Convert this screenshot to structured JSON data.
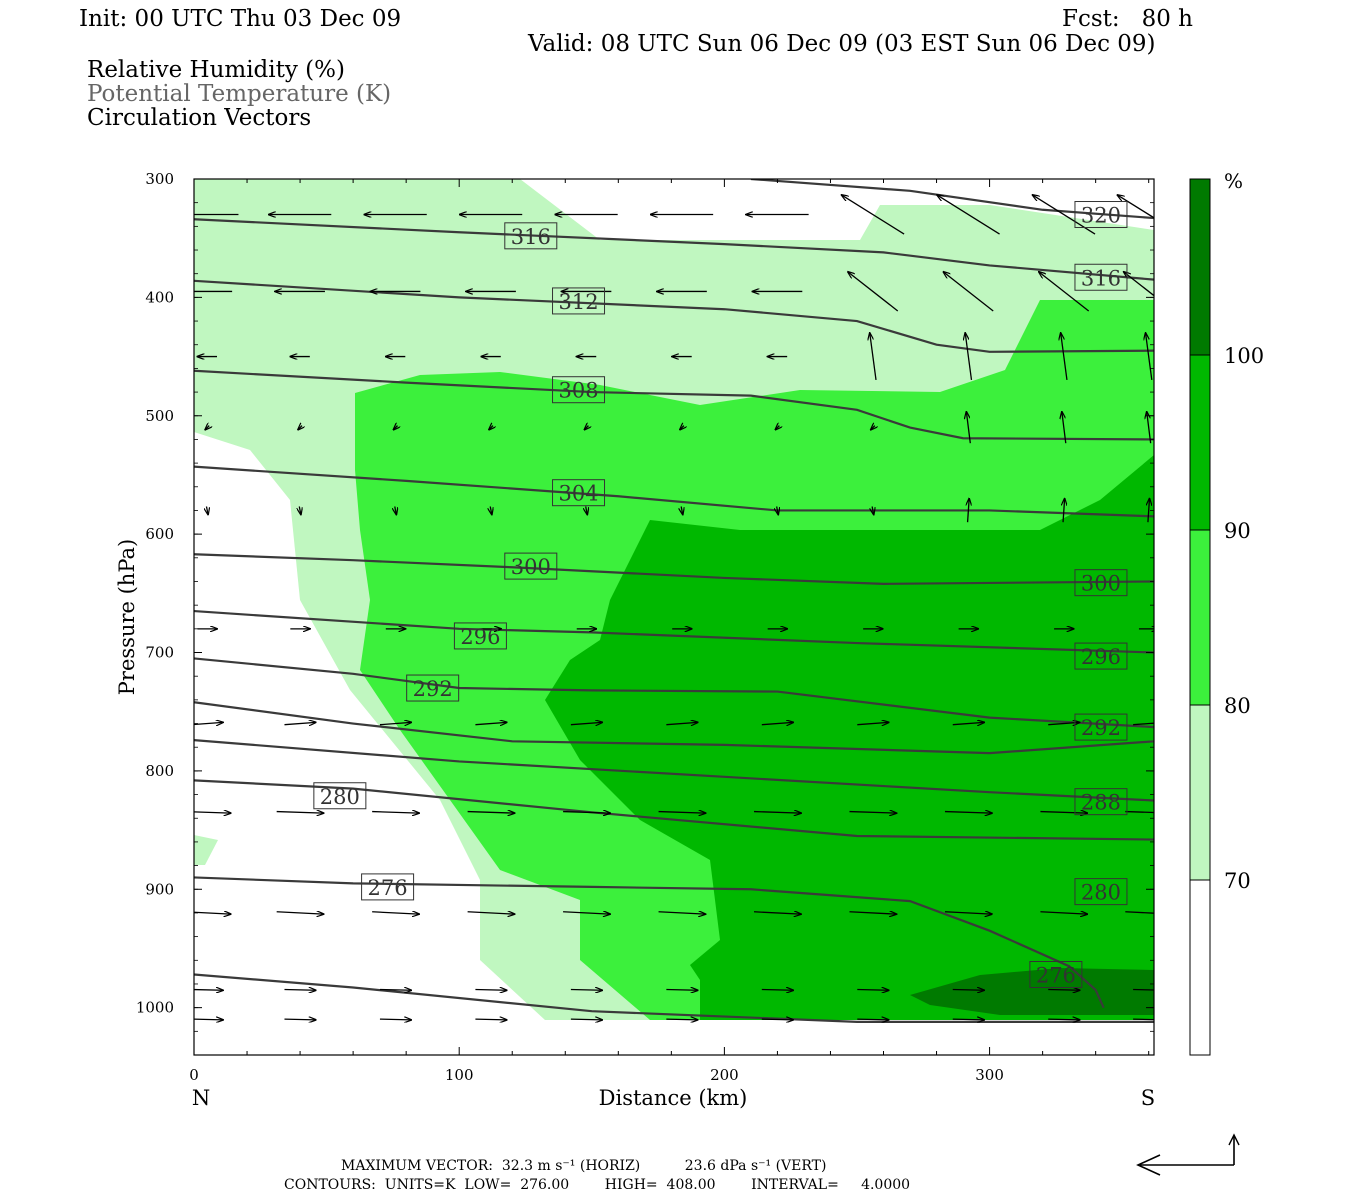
{
  "header": {
    "init": "Init: 00 UTC Thu 03 Dec 09",
    "fcst": "Fcst:   80 h",
    "valid": "Valid: 08 UTC Sun 06 Dec 09 (03 EST Sun 06 Dec 09)"
  },
  "legend_lines": {
    "rh": "Relative Humidity (%)",
    "theta": "Potential Temperature (K)",
    "vectors": "Circulation Vectors"
  },
  "footer": {
    "max_vector_line": "MAXIMUM VECTOR:  32.3 m s⁻¹ (HORIZ)          23.6 dPa s⁻¹ (VERT)",
    "contours_line": "CONTOURS:  UNITS=K  LOW=  276.00        HIGH=  408.00        INTERVAL=     4.0000"
  },
  "colors": {
    "rh_70_80": "#c0f7c0",
    "rh_80_90": "#3cf03c",
    "rh_90_100": "#00b800",
    "rh_100": "#007a00",
    "isentrope": "#3a3a3a"
  },
  "chart_data": {
    "type": "contour",
    "title": "",
    "xlabel": "Distance (km)",
    "ylabel": "Pressure (hPa)",
    "xlim": [
      0,
      362
    ],
    "ylim": [
      1040,
      300
    ],
    "x_ticks": [
      0,
      100,
      200,
      300
    ],
    "y_ticks": [
      300,
      400,
      500,
      600,
      700,
      800,
      900,
      1000
    ],
    "x_end_labels": {
      "left": "N",
      "right": "S"
    },
    "colorbar": {
      "unit": "%",
      "levels": [
        70,
        80,
        90,
        100
      ],
      "colors": [
        "#ffffff",
        "#c0f7c0",
        "#3cf03c",
        "#00b800",
        "#007a00"
      ]
    },
    "isentropes": [
      {
        "label": "276",
        "points": [
          [
            0,
            972
          ],
          [
            60,
            983
          ],
          [
            150,
            1003
          ],
          [
            250,
            1012
          ],
          [
            362,
            1012
          ]
        ],
        "label_at": [
          73,
          898
        ],
        "tag": "276"
      },
      {
        "label": "276",
        "points": [
          [
            0,
            890
          ],
          [
            60,
            895
          ],
          [
            150,
            898
          ],
          [
            210,
            900
          ],
          [
            270,
            910
          ],
          [
            300,
            935
          ],
          [
            330,
            965
          ],
          [
            340,
            985
          ],
          [
            343,
            1000
          ]
        ],
        "label_at": [
          325,
          972
        ],
        "tag": "276b"
      },
      {
        "label": "280",
        "points": [
          [
            0,
            808
          ],
          [
            60,
            815
          ],
          [
            150,
            835
          ],
          [
            250,
            855
          ],
          [
            362,
            858
          ]
        ],
        "label_at": [
          55,
          821
        ],
        "tag": "280"
      },
      {
        "label": "280",
        "points": [
          [
            0,
            850
          ],
          [
            100,
            878
          ],
          [
            200,
            893
          ],
          [
            362,
            900
          ]
        ],
        "label_at": [
          342,
          902
        ],
        "tag": "280b",
        "hidden_line": true
      },
      {
        "label": "288",
        "points": [
          [
            0,
            774
          ],
          [
            100,
            792
          ],
          [
            200,
            805
          ],
          [
            300,
            818
          ],
          [
            362,
            825
          ]
        ],
        "label_at": [
          342,
          826
        ],
        "tag": "288"
      },
      {
        "label": "292",
        "points": [
          [
            0,
            742
          ],
          [
            60,
            760
          ],
          [
            120,
            775
          ],
          [
            200,
            778
          ],
          [
            300,
            785
          ],
          [
            362,
            775
          ]
        ],
        "label_at": [
          342,
          763
        ],
        "tag": "292"
      },
      {
        "label": "292",
        "points": [
          [
            0,
            705
          ],
          [
            60,
            718
          ],
          [
            100,
            730
          ],
          [
            150,
            732
          ],
          [
            220,
            733
          ],
          [
            300,
            755
          ],
          [
            362,
            763
          ]
        ],
        "label_at": [
          90,
          730
        ],
        "tag": "292b"
      },
      {
        "label": "296",
        "points": [
          [
            0,
            665
          ],
          [
            100,
            680
          ],
          [
            150,
            683
          ],
          [
            250,
            692
          ],
          [
            362,
            700
          ]
        ],
        "label_at": [
          108,
          686
        ],
        "tag": "296"
      },
      {
        "label": "296",
        "points": [
          [
            200,
            690
          ],
          [
            362,
            702
          ]
        ],
        "label_at": [
          342,
          703
        ],
        "tag": "296b",
        "hidden_line": true
      },
      {
        "label": "300",
        "points": [
          [
            0,
            617
          ],
          [
            60,
            622
          ],
          [
            120,
            628
          ],
          [
            200,
            637
          ],
          [
            260,
            642
          ],
          [
            362,
            640
          ]
        ],
        "label_at": [
          127,
          627
        ],
        "tag": "300"
      },
      {
        "label": "300",
        "points": [
          [
            260,
            642
          ],
          [
            362,
            640
          ]
        ],
        "label_at": [
          342,
          641
        ],
        "tag": "300b",
        "hidden_line": true
      },
      {
        "label": "304",
        "points": [
          [
            0,
            543
          ],
          [
            80,
            555
          ],
          [
            160,
            568
          ],
          [
            220,
            580
          ],
          [
            300,
            580
          ],
          [
            362,
            585
          ]
        ],
        "label_at": [
          145,
          565
        ],
        "tag": "304"
      },
      {
        "label": "308",
        "points": [
          [
            0,
            462
          ],
          [
            80,
            472
          ],
          [
            150,
            480
          ],
          [
            210,
            483
          ],
          [
            250,
            495
          ],
          [
            270,
            510
          ],
          [
            290,
            519
          ],
          [
            362,
            520
          ]
        ],
        "label_at": [
          145,
          478
        ],
        "tag": "308"
      },
      {
        "label": "312",
        "points": [
          [
            0,
            386
          ],
          [
            100,
            400
          ],
          [
            200,
            410
          ],
          [
            250,
            420
          ],
          [
            280,
            440
          ],
          [
            300,
            446
          ],
          [
            362,
            445
          ]
        ],
        "label_at": [
          145,
          403
        ],
        "tag": "312"
      },
      {
        "label": "316",
        "points": [
          [
            0,
            334
          ],
          [
            100,
            345
          ],
          [
            200,
            355
          ],
          [
            260,
            362
          ],
          [
            300,
            373
          ],
          [
            362,
            385
          ]
        ],
        "label_at": [
          127,
          348
        ],
        "tag": "316"
      },
      {
        "label": "316",
        "points": [
          [
            300,
            373
          ],
          [
            362,
            385
          ]
        ],
        "label_at": [
          342,
          383
        ],
        "tag": "316b",
        "hidden_line": true
      },
      {
        "label": "320",
        "points": [
          [
            210,
            300
          ],
          [
            270,
            310
          ],
          [
            320,
            326
          ],
          [
            362,
            333
          ]
        ],
        "label_at": [
          342,
          330
        ],
        "tag": "320"
      }
    ],
    "vectors_note": "Circulation vectors along isentropes; easterly-to-westerly (leftward) aloft, westerly (rightward) in the lower troposphere."
  }
}
